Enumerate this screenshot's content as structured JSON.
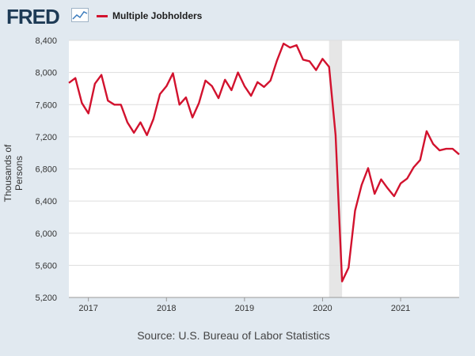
{
  "header": {
    "logo_text": "FRED"
  },
  "colors": {
    "background": "#e1e9f0",
    "plot_background": "#ffffff",
    "series": "#d2122e",
    "recession_shade": "#e6e6e6",
    "grid": "#dddddd"
  },
  "chart_data": {
    "type": "line",
    "title": "",
    "xlabel": "",
    "ylabel": "Thousands of Persons",
    "source": "Source: U.S. Bureau of Labor Statistics",
    "ylim": [
      5200,
      8400
    ],
    "yticks": [
      5200,
      5600,
      6000,
      6400,
      6800,
      7200,
      7600,
      8000,
      8400
    ],
    "ytick_labels": [
      "5,200",
      "5,600",
      "6,000",
      "6,400",
      "6,800",
      "7,200",
      "7,600",
      "8,000",
      "8,400"
    ],
    "xlim": [
      "2016-10",
      "2021-10"
    ],
    "xticks": [
      "2017",
      "2018",
      "2019",
      "2020",
      "2021"
    ],
    "grid": "horizontal",
    "legend": "top-left",
    "recession": [
      "2020-02",
      "2020-04"
    ],
    "series": [
      {
        "name": "Multiple Jobholders",
        "x": [
          "2016-10",
          "2016-11",
          "2016-12",
          "2017-01",
          "2017-02",
          "2017-03",
          "2017-04",
          "2017-05",
          "2017-06",
          "2017-07",
          "2017-08",
          "2017-09",
          "2017-10",
          "2017-11",
          "2017-12",
          "2018-01",
          "2018-02",
          "2018-03",
          "2018-04",
          "2018-05",
          "2018-06",
          "2018-07",
          "2018-08",
          "2018-09",
          "2018-10",
          "2018-11",
          "2018-12",
          "2019-01",
          "2019-02",
          "2019-03",
          "2019-04",
          "2019-05",
          "2019-06",
          "2019-07",
          "2019-08",
          "2019-09",
          "2019-10",
          "2019-11",
          "2019-12",
          "2020-01",
          "2020-02",
          "2020-03",
          "2020-04",
          "2020-05",
          "2020-06",
          "2020-07",
          "2020-08",
          "2020-09",
          "2020-10",
          "2020-11",
          "2020-12",
          "2021-01",
          "2021-02",
          "2021-03",
          "2021-04",
          "2021-05",
          "2021-06",
          "2021-07",
          "2021-08",
          "2021-09",
          "2021-10"
        ],
        "values": [
          7870,
          7930,
          7620,
          7490,
          7860,
          7970,
          7650,
          7600,
          7600,
          7380,
          7250,
          7380,
          7220,
          7420,
          7730,
          7830,
          7990,
          7600,
          7690,
          7440,
          7620,
          7900,
          7830,
          7680,
          7910,
          7780,
          8000,
          7830,
          7710,
          7880,
          7820,
          7900,
          8150,
          8360,
          8310,
          8340,
          8160,
          8140,
          8030,
          8170,
          8070,
          7220,
          5400,
          5570,
          6280,
          6600,
          6810,
          6490,
          6670,
          6560,
          6460,
          6620,
          6680,
          6820,
          6910,
          7270,
          7110,
          7030,
          7050,
          7050,
          6980
        ]
      }
    ]
  }
}
